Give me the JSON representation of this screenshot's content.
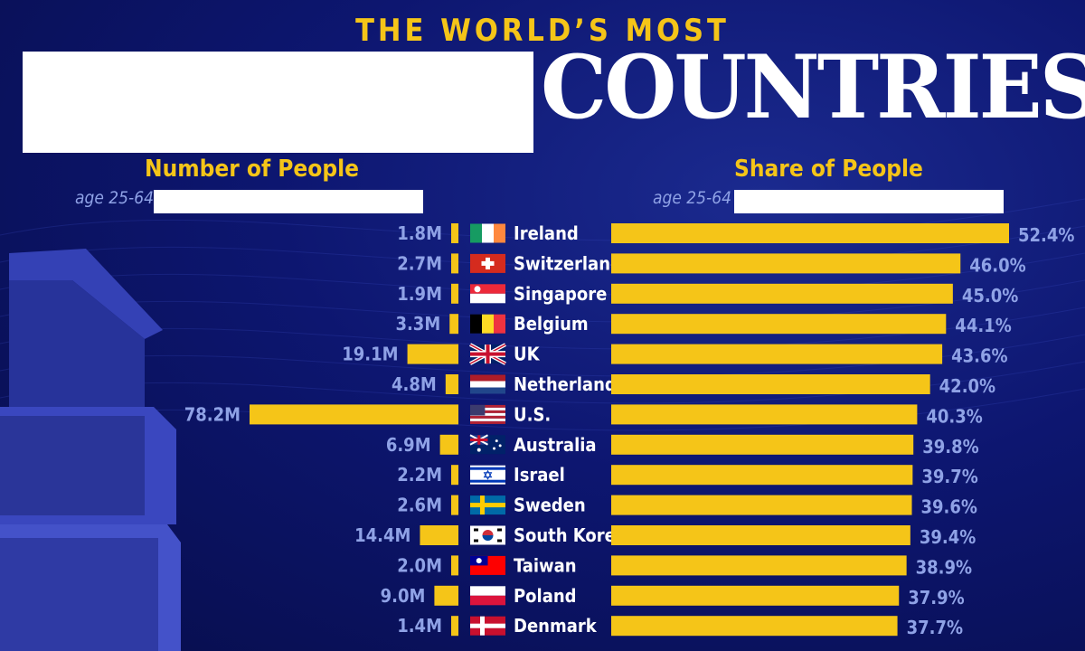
{
  "header": {
    "kicker": "THE WORLD’S MOST",
    "title_word": "COUNTRIES"
  },
  "left_panel": {
    "title": "Number of People",
    "subtitle": "age 25-64"
  },
  "right_panel": {
    "title": "Share of People",
    "subtitle": "age 25-64"
  },
  "colors": {
    "bar": "#f5c518",
    "label": "#8fa2e6",
    "background": "#0d1670"
  },
  "chart_data": {
    "type": "bar",
    "categories": [
      "Ireland",
      "Switzerland",
      "Singapore",
      "Belgium",
      "UK",
      "Netherlands",
      "U.S.",
      "Australia",
      "Israel",
      "Sweden",
      "South Korea",
      "Taiwan",
      "Poland",
      "Denmark"
    ],
    "series": [
      {
        "name": "Number of People",
        "values": [
          1.8,
          2.7,
          1.9,
          3.3,
          19.1,
          4.8,
          78.2,
          6.9,
          2.2,
          2.6,
          14.4,
          2.0,
          9.0,
          1.4
        ],
        "labels": [
          "1.8M",
          "2.7M",
          "1.9M",
          "3.3M",
          "19.1M",
          "4.8M",
          "78.2M",
          "6.9M",
          "2.2M",
          "2.6M",
          "14.4M",
          "2.0M",
          "9.0M",
          "1.4M"
        ]
      },
      {
        "name": "Share of People",
        "values": [
          52.4,
          46.0,
          45.0,
          44.1,
          43.6,
          42.0,
          40.3,
          39.8,
          39.7,
          39.6,
          39.4,
          38.9,
          37.9,
          37.7
        ],
        "labels": [
          "52.4%",
          "46.0%",
          "45.0%",
          "44.1%",
          "43.6%",
          "42.0%",
          "40.3%",
          "39.8%",
          "39.7%",
          "39.6%",
          "39.4%",
          "38.9%",
          "37.9%",
          "37.7%"
        ]
      }
    ],
    "flags": [
      "ireland-flag-icon",
      "switzerland-flag-icon",
      "singapore-flag-icon",
      "belgium-flag-icon",
      "uk-flag-icon",
      "netherlands-flag-icon",
      "us-flag-icon",
      "australia-flag-icon",
      "israel-flag-icon",
      "sweden-flag-icon",
      "south-korea-flag-icon",
      "taiwan-flag-icon",
      "poland-flag-icon",
      "denmark-flag-icon"
    ]
  }
}
